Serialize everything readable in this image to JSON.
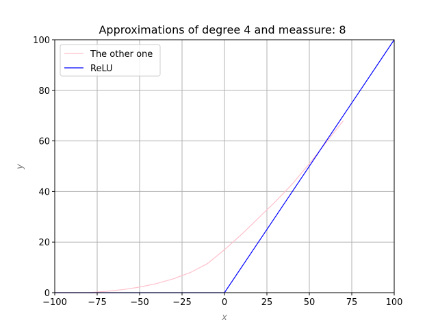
{
  "chart_data": {
    "type": "line",
    "title": "Approximations of degree 4 and meassure: 8",
    "xlabel": "x",
    "ylabel": "y",
    "xlim": [
      -100,
      100
    ],
    "ylim": [
      0,
      100
    ],
    "xticks": [
      -100,
      -75,
      -50,
      -25,
      0,
      25,
      50,
      75,
      100
    ],
    "yticks": [
      0,
      20,
      40,
      60,
      80,
      100
    ],
    "xtick_labels": [
      "−100",
      "−75",
      "−50",
      "−25",
      "0",
      "25",
      "50",
      "75",
      "100"
    ],
    "ytick_labels": [
      "0",
      "20",
      "40",
      "60",
      "80",
      "100"
    ],
    "grid": true,
    "legend_position": "upper-left",
    "series": [
      {
        "name": "The other one",
        "color": "#ffc0cb",
        "x": [
          -100,
          -90,
          -80,
          -70,
          -60,
          -50,
          -40,
          -30,
          -20,
          -10,
          0,
          10,
          20,
          30,
          40,
          50,
          60,
          70
        ],
        "y": [
          0,
          0,
          0,
          0.5,
          1.2,
          2.2,
          3.6,
          5.5,
          8.0,
          11.5,
          17.0,
          23.0,
          29.5,
          36.0,
          43.0,
          51.0,
          59.5,
          68.0
        ]
      },
      {
        "name": "ReLU",
        "color": "#0000ff",
        "x": [
          -100,
          0,
          100
        ],
        "y": [
          0,
          0,
          100
        ]
      }
    ]
  }
}
